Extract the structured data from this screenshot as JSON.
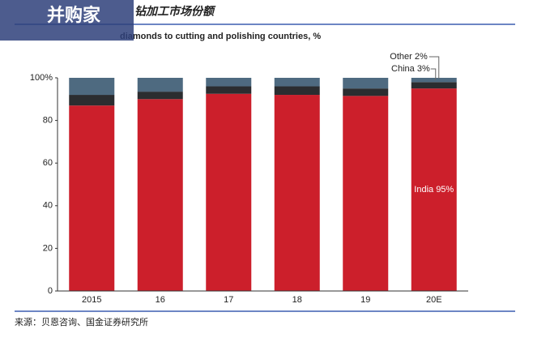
{
  "header": {
    "title": "钻加工市场份额",
    "watermark": "并购家"
  },
  "chart_data": {
    "type": "stacked_bar",
    "title": "diamonds to cutting and polishing countries, %",
    "categories": [
      "2015",
      "16",
      "17",
      "18",
      "19",
      "20E"
    ],
    "series": [
      {
        "name": "India",
        "color": "#cc1f2b",
        "values": [
          87,
          90,
          92.5,
          92,
          91.5,
          95
        ]
      },
      {
        "name": "China",
        "color": "#2b2d30",
        "values": [
          5,
          3.5,
          3.5,
          4,
          3.5,
          3
        ]
      },
      {
        "name": "Other",
        "color": "#4e6a80",
        "values": [
          8,
          6.5,
          4,
          4,
          5,
          2
        ]
      }
    ],
    "annotations": [
      "India 95%",
      "China 3%",
      "Other 2%"
    ],
    "ylim": [
      0,
      100
    ],
    "yticks": [
      0,
      20,
      40,
      60,
      80,
      {
        "value": 100,
        "label": "100%"
      }
    ],
    "grid": false
  },
  "footer": {
    "source": "来源：贝恩咨询、国金证券研究所"
  }
}
